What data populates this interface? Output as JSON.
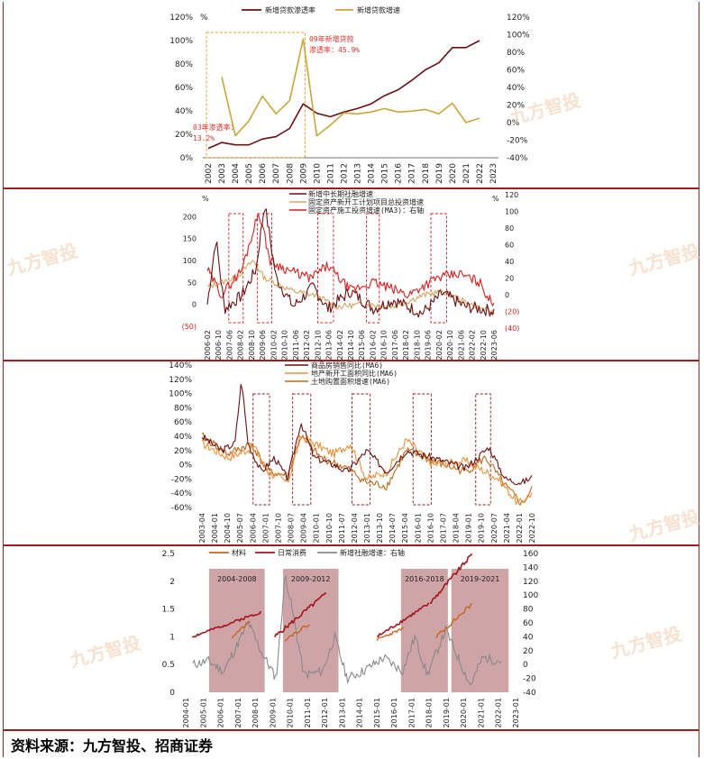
{
  "source": "资料来源：九方智投、招商证券",
  "watermark": "九方智投",
  "chart_data": [
    {
      "type": "line",
      "x": [
        "2002",
        "2003",
        "2004",
        "2005",
        "2006",
        "2007",
        "2008",
        "2009",
        "2010",
        "2011",
        "2012",
        "2013",
        "2014",
        "2015",
        "2016",
        "2017",
        "2018",
        "2019",
        "2020",
        "2021",
        "2022",
        "2023"
      ],
      "left_axis": {
        "ticks": [
          "0%",
          "20%",
          "40%",
          "60%",
          "80%",
          "100%",
          "120%"
        ],
        "min": 0,
        "max": 120,
        "unit": "%"
      },
      "right_axis": {
        "ticks": [
          "-40%",
          "-20%",
          "0%",
          "20%",
          "40%",
          "60%",
          "80%",
          "100%",
          "120%"
        ],
        "min": -40,
        "max": 120
      },
      "series": [
        {
          "name": "新增贷款渗透率",
          "axis": "left",
          "color": "#6b0f12",
          "values": [
            8,
            13,
            11,
            11,
            16,
            18,
            25,
            46,
            38,
            35,
            39,
            42,
            46,
            53,
            58,
            66,
            75,
            81,
            94,
            94,
            100,
            null
          ]
        },
        {
          "name": "新增贷款增速",
          "axis": "right",
          "color": "#c9a63a",
          "values": [
            null,
            52,
            -15,
            2,
            30,
            10,
            25,
            95,
            -15,
            -3,
            11,
            10,
            12,
            16,
            12,
            13,
            15,
            10,
            22,
            0,
            5,
            null
          ]
        }
      ],
      "annotations": [
        "09年新增贷款",
        "渗透率：45.9%",
        "03年渗透率：",
        "13.2%"
      ]
    },
    {
      "type": "line",
      "x_ticks": [
        "2006-02",
        "2006-10",
        "2007-06",
        "2008-02",
        "2008-10",
        "2009-06",
        "2010-02",
        "2010-10",
        "2011-06",
        "2012-02",
        "2012-10",
        "2013-06",
        "2014-02",
        "2014-10",
        "2015-06",
        "2016-02",
        "2016-10",
        "2017-06",
        "2018-02",
        "2018-10",
        "2019-06",
        "2020-02",
        "2020-10",
        "2021-06",
        "2022-02",
        "2022-10",
        "2023-06"
      ],
      "left_axis": {
        "ticks": [
          "(50)",
          "0",
          "50",
          "100",
          "150",
          "200"
        ],
        "min": -50,
        "max": 250,
        "unit": "%"
      },
      "right_axis": {
        "ticks": [
          "(40)",
          "(20)",
          "0",
          "20",
          "40",
          "60",
          "80",
          "100",
          "120"
        ],
        "min": -40,
        "max": 120,
        "unit": "%"
      },
      "series": [
        {
          "name": "新增中长期社融增速",
          "color": "#6b0f12"
        },
        {
          "name": "固定资产新开工计划项目总投资增速",
          "color": "#d4a760"
        },
        {
          "name": "固定资产施工投资增速(MA3)：右轴",
          "color": "#d91f1f"
        }
      ]
    },
    {
      "type": "line",
      "x_ticks": [
        "2003-04",
        "2004-01",
        "2004-10",
        "2005-07",
        "2006-04",
        "2007-01",
        "2007-10",
        "2008-07",
        "2009-04",
        "2010-01",
        "2010-10",
        "2011-07",
        "2012-04",
        "2013-01",
        "2013-10",
        "2014-07",
        "2015-04",
        "2016-01",
        "2016-10",
        "2017-07",
        "2018-04",
        "2019-01",
        "2019-10",
        "2020-07",
        "2021-04",
        "2022-01",
        "2022-10"
      ],
      "axis": {
        "ticks": [
          "-60%",
          "-40%",
          "-20%",
          "0%",
          "20%",
          "40%",
          "60%",
          "80%",
          "100%",
          "120%",
          "140%"
        ],
        "min": -60,
        "max": 140
      },
      "series": [
        {
          "name": "商品房销售同比(MA6)",
          "color": "#6b0f12"
        },
        {
          "name": "地产新开工面积同比(MA6)",
          "color": "#e8913a"
        },
        {
          "name": "土地购置面积增速(MA6)",
          "color": "#c06a1a"
        }
      ]
    },
    {
      "type": "line",
      "x_ticks": [
        "2004-01",
        "2005-01",
        "2006-01",
        "2007-01",
        "2008-01",
        "2009-01",
        "2010-01",
        "2011-01",
        "2012-01",
        "2013-01",
        "2014-01",
        "2015-01",
        "2016-01",
        "2017-01",
        "2018-01",
        "2019-01",
        "2020-01",
        "2021-01",
        "2022-01",
        "2023-01"
      ],
      "left_axis": {
        "ticks": [
          "0",
          "0.5",
          "1",
          "1.5",
          "2",
          "2.5"
        ],
        "min": 0,
        "max": 2.5
      },
      "right_axis": {
        "ticks": [
          "-40",
          "-20",
          "0",
          "20",
          "40",
          "60",
          "80",
          "100",
          "120",
          "140",
          "160"
        ],
        "min": -40,
        "max": 160
      },
      "series": [
        {
          "name": "材料",
          "color": "#c9651e"
        },
        {
          "name": "日常消费",
          "color": "#a3161b"
        },
        {
          "name": "新增社融增速：右轴",
          "color": "#8a8a8a"
        }
      ],
      "periods": [
        "2004-2008",
        "2009-2012",
        "2016-2018",
        "2019-2021"
      ]
    }
  ]
}
